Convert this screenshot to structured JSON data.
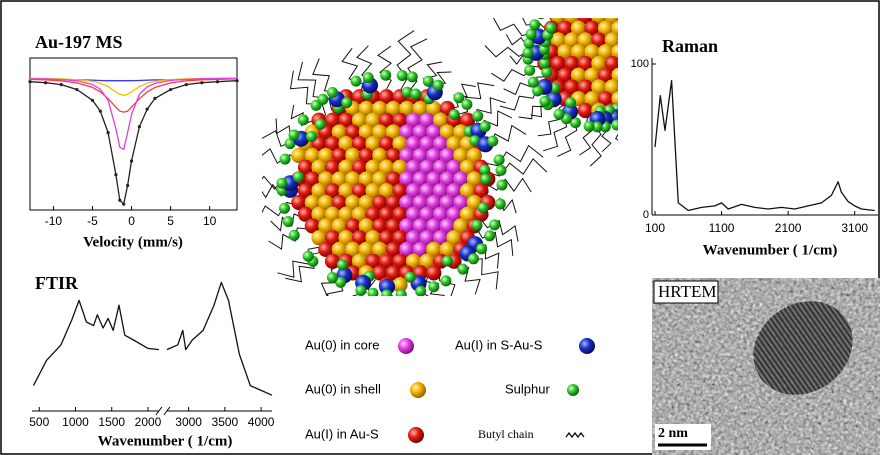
{
  "chart_data": [
    {
      "type": "line",
      "title": "Au-197 MS",
      "x_label": "Velocity (mm/s)",
      "x": [
        -13,
        -11,
        -9,
        -7,
        -5,
        -4,
        -3,
        -2,
        -1.5,
        -1,
        -0.5,
        0,
        1,
        2,
        3,
        5,
        7,
        9,
        11,
        13.5
      ],
      "series": [
        {
          "color": "#3a3aff",
          "values": [
            -0.01,
            -0.012,
            -0.015,
            -0.02,
            -0.025,
            -0.028,
            -0.03,
            -0.03,
            -0.03,
            -0.03,
            -0.03,
            -0.03,
            -0.028,
            -0.025,
            -0.022,
            -0.02,
            -0.015,
            -0.012,
            -0.01,
            -0.01
          ]
        },
        {
          "color": "#f0c000",
          "values": [
            -0.005,
            -0.007,
            -0.011,
            -0.018,
            -0.036,
            -0.055,
            -0.09,
            -0.144,
            -0.169,
            -0.18,
            -0.169,
            -0.144,
            -0.09,
            -0.055,
            -0.036,
            -0.018,
            -0.011,
            -0.007,
            -0.005,
            -0.004
          ]
        },
        {
          "color": "#ff3b3b",
          "values": [
            -0.015,
            -0.021,
            -0.031,
            -0.052,
            -0.098,
            -0.143,
            -0.213,
            -0.3,
            -0.34,
            -0.35,
            -0.34,
            -0.3,
            -0.213,
            -0.143,
            -0.098,
            -0.052,
            -0.031,
            -0.021,
            -0.015,
            -0.01
          ]
        },
        {
          "color": "#e03fe0",
          "values": [
            -0.01,
            -0.011,
            -0.017,
            -0.031,
            -0.068,
            -0.116,
            -0.23,
            -0.52,
            -0.71,
            -0.73,
            -0.56,
            -0.375,
            -0.17,
            -0.093,
            -0.057,
            -0.027,
            -0.016,
            -0.01,
            -0.007,
            -0.005
          ]
        },
        {
          "color": "#222222",
          "markers": true,
          "values": [
            -0.04,
            -0.05,
            -0.07,
            -0.12,
            -0.23,
            -0.34,
            -0.56,
            -0.99,
            -1.25,
            -1.29,
            -1.1,
            -0.85,
            -0.5,
            -0.32,
            -0.21,
            -0.12,
            -0.07,
            -0.05,
            -0.04,
            -0.03
          ]
        }
      ],
      "xlim": [
        -13,
        13.5
      ],
      "xticks": [
        -10,
        -5,
        0,
        5,
        10
      ],
      "ylim": [
        -1.35,
        0.1
      ],
      "frame": true
    },
    {
      "type": "line",
      "title": "FTIR",
      "x_label": "Wavenumber ( 1/cm)",
      "x": [
        420,
        600,
        800,
        950,
        1050,
        1150,
        1250,
        1300,
        1380,
        1450,
        1520,
        1600,
        1680,
        1800,
        2000,
        2150,
        2400,
        2700,
        2850,
        2920,
        2960,
        3050,
        3200,
        3350,
        3450,
        3550,
        3700,
        3850,
        4000,
        4150
      ],
      "series": [
        {
          "color": "#111111",
          "values": [
            12,
            33,
            46,
            67,
            83,
            65,
            62,
            71,
            60,
            68,
            58,
            79,
            54,
            50,
            43,
            42,
            null,
            42,
            46,
            58,
            42,
            50,
            58,
            79,
            98,
            83,
            38,
            12,
            8,
            4
          ]
        }
      ],
      "xlim": [
        400,
        4150
      ],
      "axis_break": [
        2150,
        2700
      ],
      "xticks": [
        500,
        1000,
        1500,
        2000,
        3000,
        3500,
        4000
      ],
      "ylim": [
        0,
        100
      ],
      "frame": false
    },
    {
      "type": "line",
      "title": "Raman",
      "x_label": "Wavenumber ( 1/cm)",
      "x": [
        100,
        180,
        250,
        350,
        450,
        600,
        800,
        1000,
        1100,
        1200,
        1400,
        1600,
        1800,
        2000,
        2200,
        2400,
        2600,
        2750,
        2850,
        2900,
        3000,
        3100,
        3200,
        3400
      ],
      "series": [
        {
          "color": "#111111",
          "values": [
            45,
            79,
            56,
            89,
            8,
            3,
            5,
            6,
            8,
            4,
            7,
            5,
            4,
            5,
            4,
            6,
            8,
            13,
            22,
            15,
            9,
            6,
            4,
            3
          ]
        }
      ],
      "xlim": [
        55,
        3450
      ],
      "xticks": [
        100,
        1100,
        2100,
        3100
      ],
      "ylim": [
        0,
        100
      ],
      "yticks": [
        0,
        100
      ],
      "frame": false
    }
  ],
  "illustration": {
    "legend": [
      "Au(0) in core",
      "Au(I) in S-Au-S",
      "Au(0) in shell",
      "Sulphur",
      "Au(I) in Au-S",
      "Butyl chain"
    ]
  },
  "micrograph": {
    "title": "HRTEM",
    "scale_bar": "2 nm"
  }
}
